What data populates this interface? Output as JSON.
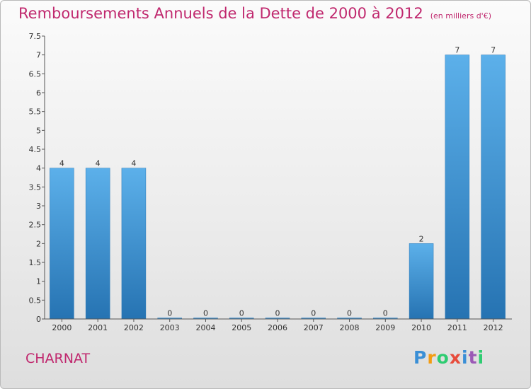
{
  "chart_data": {
    "type": "bar",
    "title": "Remboursements Annuels de la Dette de 2000 à 2012",
    "unit": "(en milliers d'€)",
    "categories": [
      "2000",
      "2001",
      "2002",
      "2003",
      "2004",
      "2005",
      "2006",
      "2007",
      "2008",
      "2009",
      "2010",
      "2011",
      "2012"
    ],
    "values": [
      4,
      4,
      4,
      0,
      0,
      0,
      0,
      0,
      0,
      0,
      2,
      7,
      7
    ],
    "value_labels": [
      "4",
      "4",
      "4",
      "0",
      "0",
      "0",
      "0",
      "0",
      "0",
      "0",
      "2",
      "7",
      "7"
    ],
    "ylim": [
      0,
      7.5
    ],
    "y_ticks": [
      0,
      0.5,
      1,
      1.5,
      2,
      2.5,
      3,
      3.5,
      4,
      4.5,
      5,
      5.5,
      6,
      6.5,
      7,
      7.5
    ],
    "y_tick_labels": [
      "0",
      "0.5",
      "1",
      "1.5",
      "2",
      "2.5",
      "3",
      "3.5",
      "4",
      "4.5",
      "5",
      "5.5",
      "6",
      "6.5",
      "7",
      "7.5"
    ],
    "grid": false,
    "colors": {
      "bar": "#3d92d2",
      "bar_light": "#5cb0ea",
      "bar_dark": "#2673b2",
      "title": "#c0286e",
      "axis": "#555555"
    }
  },
  "footer": {
    "place_name": "CHARNAT",
    "brand": {
      "letters": [
        "P",
        "r",
        "o",
        "x",
        "i",
        "t",
        "i"
      ],
      "colors": [
        "#3a8fd6",
        "#f39c12",
        "#2ecc71",
        "#e74c3c",
        "#3a8fd6",
        "#9b59b6",
        "#2ecc71"
      ]
    }
  }
}
